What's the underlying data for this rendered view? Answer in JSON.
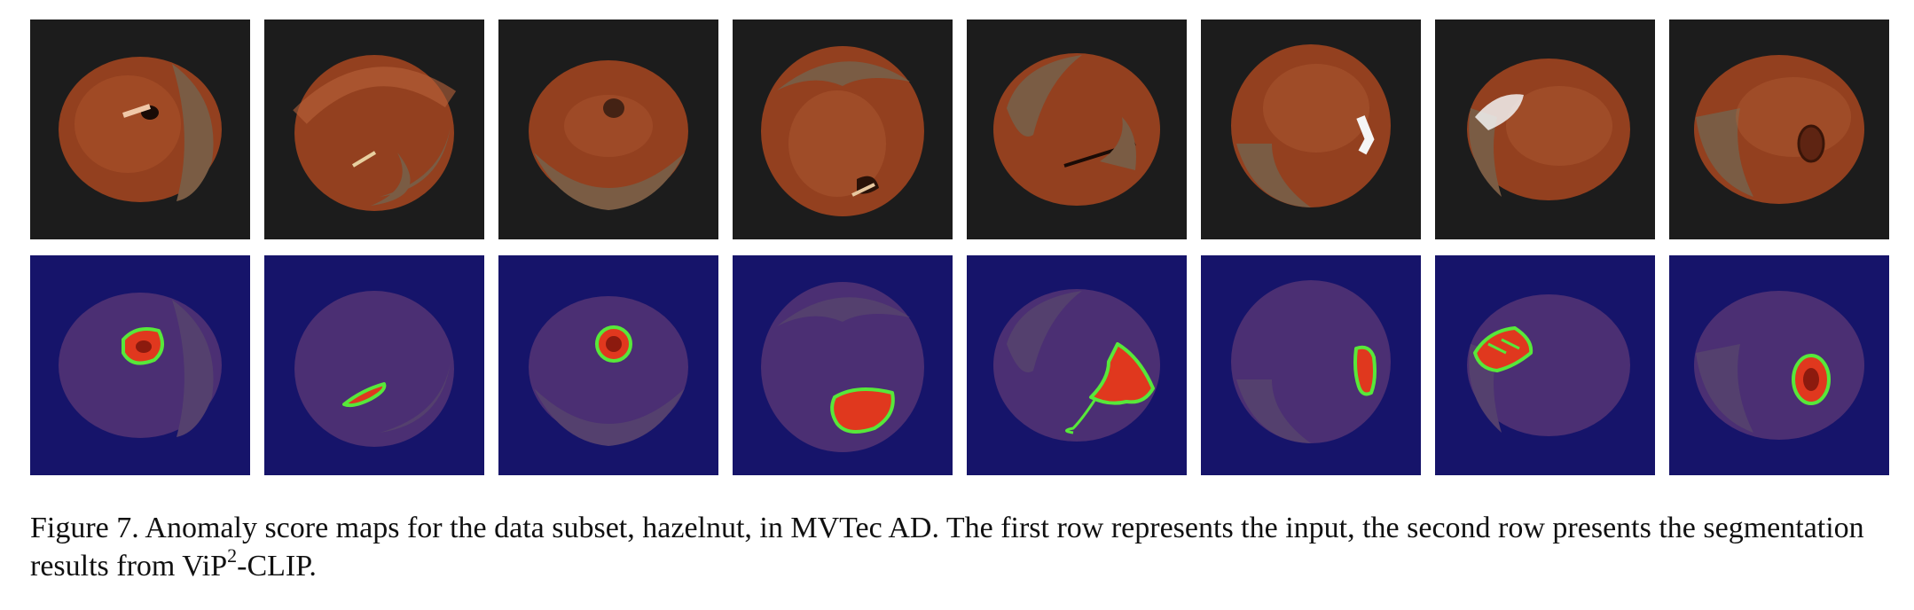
{
  "figure": {
    "label": "Figure 7.",
    "caption_text": "Anomaly score maps for the data subset, hazelnut, in MVTec AD. The first row represents the input, the second row presents the segmentation results from ViP",
    "caption_sup": "2",
    "caption_end": "-CLIP."
  },
  "colors": {
    "input_bg": "#1c1c1c",
    "seg_bg": "#16146a",
    "nut_dark": "#5e2412",
    "nut_mid": "#93401f",
    "nut_light": "#b8633a",
    "cap": "#7a5c44",
    "seg_nut": "#4b2f73",
    "heat": "#e0381e",
    "contour": "#57e83a"
  },
  "panels": [
    {
      "id": 1,
      "defect": "hole"
    },
    {
      "id": 2,
      "defect": "scratch"
    },
    {
      "id": 3,
      "defect": "hole"
    },
    {
      "id": 4,
      "defect": "crack"
    },
    {
      "id": 5,
      "defect": "crack"
    },
    {
      "id": 6,
      "defect": "print"
    },
    {
      "id": 7,
      "defect": "print"
    },
    {
      "id": 8,
      "defect": "hole"
    }
  ]
}
